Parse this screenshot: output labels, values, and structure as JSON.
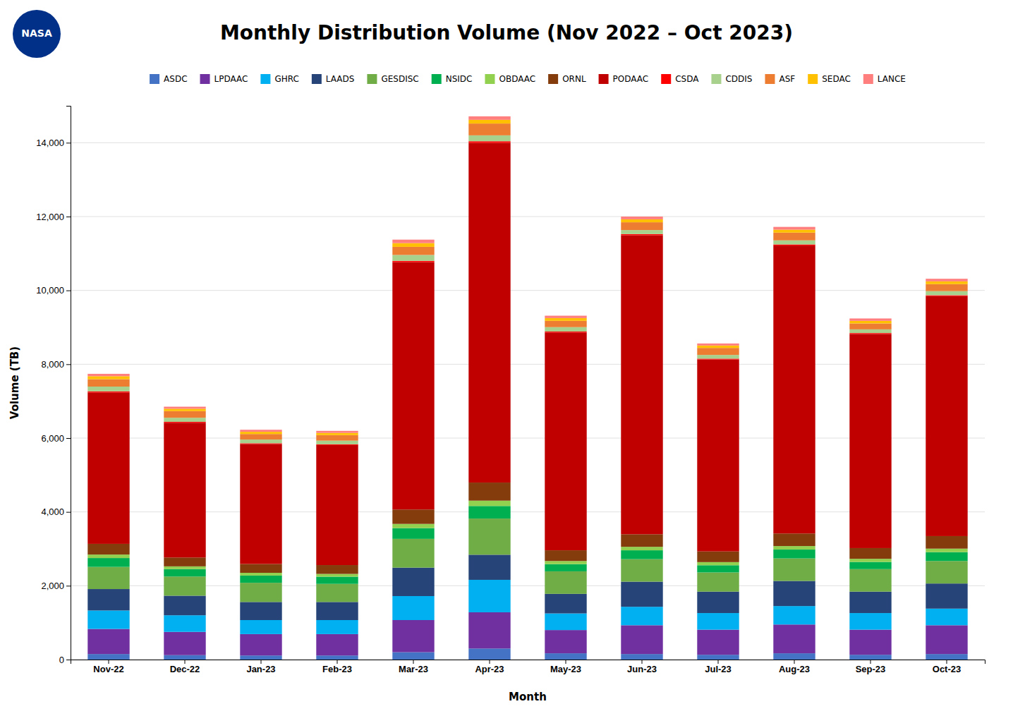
{
  "chart_data": {
    "type": "bar",
    "stacked": true,
    "title": "Monthly Distribution Volume (Nov 2022 – Oct 2023)",
    "x_label": "Month",
    "y_label": "Volume (TB)",
    "annotations": [
      "NASA"
    ],
    "categories": [
      "Nov-22",
      "Dec-22",
      "Jan-23",
      "Feb-23",
      "Mar-23",
      "Apr-23",
      "May-23",
      "Jun-23",
      "Jul-23",
      "Aug-23",
      "Sep-23",
      "Oct-23"
    ],
    "series": [
      {
        "name": "ASDC",
        "color": "#4472C4",
        "values": [
          150,
          120,
          110,
          110,
          200,
          300,
          170,
          150,
          130,
          170,
          130,
          150
        ]
      },
      {
        "name": "LPDAAC",
        "color": "#7030A0",
        "values": [
          680,
          630,
          580,
          580,
          870,
          980,
          630,
          780,
          680,
          780,
          680,
          780
        ]
      },
      {
        "name": "GHRC",
        "color": "#00B0F0",
        "values": [
          500,
          450,
          380,
          380,
          650,
          880,
          450,
          500,
          450,
          500,
          450,
          450
        ]
      },
      {
        "name": "LAADS",
        "color": "#264478",
        "values": [
          580,
          530,
          490,
          490,
          770,
          680,
          530,
          680,
          580,
          680,
          580,
          680
        ]
      },
      {
        "name": "GESDISC",
        "color": "#70AD47",
        "values": [
          600,
          520,
          520,
          490,
          780,
          980,
          610,
          610,
          520,
          610,
          610,
          610
        ]
      },
      {
        "name": "NSIDC",
        "color": "#00B050",
        "values": [
          240,
          200,
          195,
          195,
          290,
          340,
          195,
          240,
          195,
          240,
          195,
          240
        ]
      },
      {
        "name": "OBDAAC",
        "color": "#92D050",
        "values": [
          95,
          75,
          75,
          75,
          115,
          145,
          85,
          95,
          85,
          95,
          85,
          95
        ]
      },
      {
        "name": "ORNL",
        "color": "#843C0C",
        "values": [
          290,
          240,
          240,
          240,
          390,
          490,
          290,
          340,
          290,
          340,
          290,
          340
        ]
      },
      {
        "name": "PODAAC",
        "color": "#C00000",
        "values": [
          4100,
          3650,
          3250,
          3250,
          6700,
          9200,
          5900,
          8100,
          5200,
          7800,
          5800,
          6500
        ]
      },
      {
        "name": "CSDA",
        "color": "#FF0000",
        "values": [
          30,
          25,
          20,
          20,
          35,
          45,
          25,
          30,
          22,
          30,
          25,
          25
        ]
      },
      {
        "name": "CDDIS",
        "color": "#A9D18E",
        "values": [
          130,
          110,
          100,
          100,
          160,
          160,
          120,
          110,
          100,
          110,
          100,
          110
        ]
      },
      {
        "name": "ASF",
        "color": "#ED7D31",
        "values": [
          200,
          180,
          150,
          150,
          220,
          320,
          170,
          210,
          190,
          210,
          160,
          190
        ]
      },
      {
        "name": "SEDAC",
        "color": "#FFC000",
        "values": [
          80,
          65,
          60,
          60,
          100,
          100,
          75,
          80,
          65,
          80,
          70,
          75
        ]
      },
      {
        "name": "LANCE",
        "color": "#FF7F7F",
        "values": [
          65,
          55,
          55,
          55,
          95,
          95,
          65,
          75,
          55,
          75,
          65,
          70
        ]
      }
    ],
    "ylim": [
      0,
      15000
    ],
    "yticks": [
      0,
      {
        "value": 2000,
        "label": "2,000"
      },
      {
        "value": 4000,
        "label": "4,000"
      },
      {
        "value": 6000,
        "label": "6,000"
      },
      {
        "value": 8000,
        "label": "8,000"
      },
      {
        "value": 10000,
        "label": "10,000"
      },
      {
        "value": 12000,
        "label": "12,000"
      },
      {
        "value": 14000,
        "label": "14,000"
      }
    ],
    "grid": true,
    "legend": "top"
  }
}
